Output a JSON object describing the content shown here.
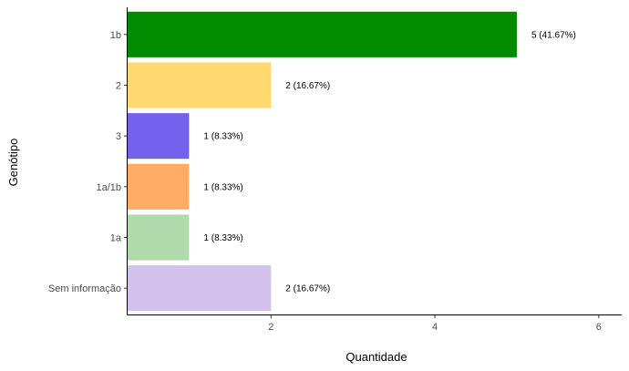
{
  "chart_data": {
    "type": "bar",
    "orientation": "horizontal",
    "categories": [
      "1b",
      "2",
      "3",
      "1a/1b",
      "1a",
      "Sem informação"
    ],
    "values": [
      5,
      2,
      1,
      1,
      1,
      2
    ],
    "data_labels": [
      "5 (41.67%)",
      "2 (16.67%)",
      "1 (8.33%)",
      "1 (8.33%)",
      "1 (8.33%)",
      "2 (16.67%)"
    ],
    "colors": [
      "#008B00",
      "#FFD970",
      "#7462EE",
      "#FFAD66",
      "#B0D9AC",
      "#D4C2EC"
    ],
    "xlabel": "Quantidade",
    "ylabel": "Genótipo",
    "xticks": [
      2,
      4,
      6
    ],
    "xlim": [
      0.25,
      6.28
    ],
    "grid": false,
    "legend": "none"
  }
}
